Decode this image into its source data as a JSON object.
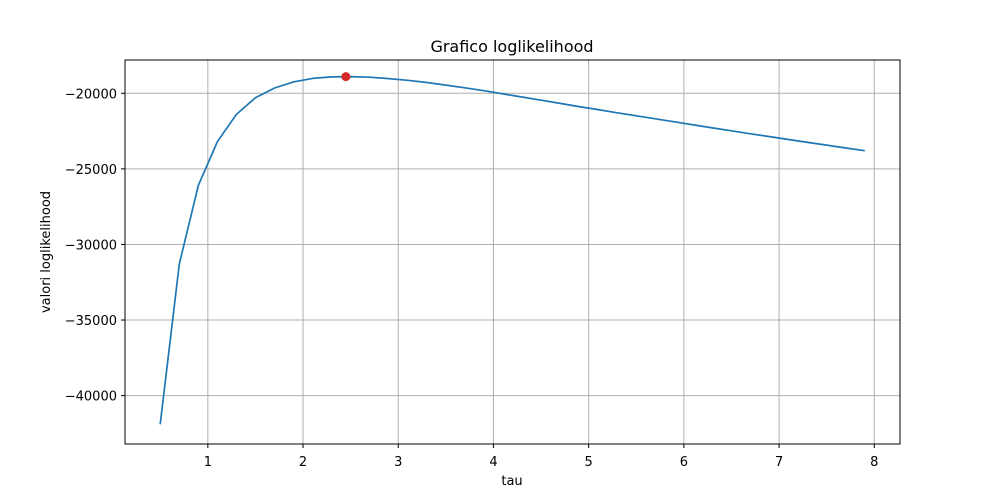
{
  "chart_data": {
    "type": "line",
    "title": "Grafico loglikelihood",
    "xlabel": "tau",
    "ylabel": "valori loglikelihood",
    "xlim": [
      0.13,
      8.27
    ],
    "ylim": [
      -43200,
      -17800
    ],
    "x_ticks": [
      {
        "value": 1,
        "label": "1"
      },
      {
        "value": 2,
        "label": "2"
      },
      {
        "value": 3,
        "label": "3"
      },
      {
        "value": 4,
        "label": "4"
      },
      {
        "value": 5,
        "label": "5"
      },
      {
        "value": 6,
        "label": "6"
      },
      {
        "value": 7,
        "label": "7"
      },
      {
        "value": 8,
        "label": "8"
      }
    ],
    "y_ticks": [
      {
        "value": -40000,
        "label": "−40000"
      },
      {
        "value": -35000,
        "label": "−35000"
      },
      {
        "value": -30000,
        "label": "−30000"
      },
      {
        "value": -25000,
        "label": "−25000"
      },
      {
        "value": -20000,
        "label": "−20000"
      }
    ],
    "grid": true,
    "series": [
      {
        "color": "#1f77b4",
        "x": [
          0.5,
          0.7,
          0.9,
          1.1,
          1.3,
          1.5,
          1.7,
          1.9,
          2.1,
          2.3,
          2.5,
          2.7,
          2.9,
          3.1,
          3.3,
          3.5,
          3.7,
          3.9,
          4.1,
          4.3,
          4.5,
          4.7,
          4.9,
          5.1,
          5.3,
          5.5,
          5.7,
          5.9,
          6.1,
          6.3,
          6.5,
          6.7,
          6.9,
          7.1,
          7.3,
          7.5,
          7.7,
          7.9
        ],
        "y": [
          -41900,
          -31300,
          -26100,
          -23200,
          -21400,
          -20300,
          -19650,
          -19250,
          -19020,
          -18920,
          -18900,
          -18940,
          -19030,
          -19140,
          -19290,
          -19460,
          -19640,
          -19830,
          -20040,
          -20250,
          -20460,
          -20670,
          -20880,
          -21080,
          -21290,
          -21490,
          -21690,
          -21890,
          -22090,
          -22290,
          -22480,
          -22680,
          -22870,
          -23060,
          -23250,
          -23430,
          -23620,
          -23800
        ]
      }
    ],
    "highlight_point": {
      "x": 2.45,
      "y": -18900,
      "color": "#d62728"
    }
  }
}
